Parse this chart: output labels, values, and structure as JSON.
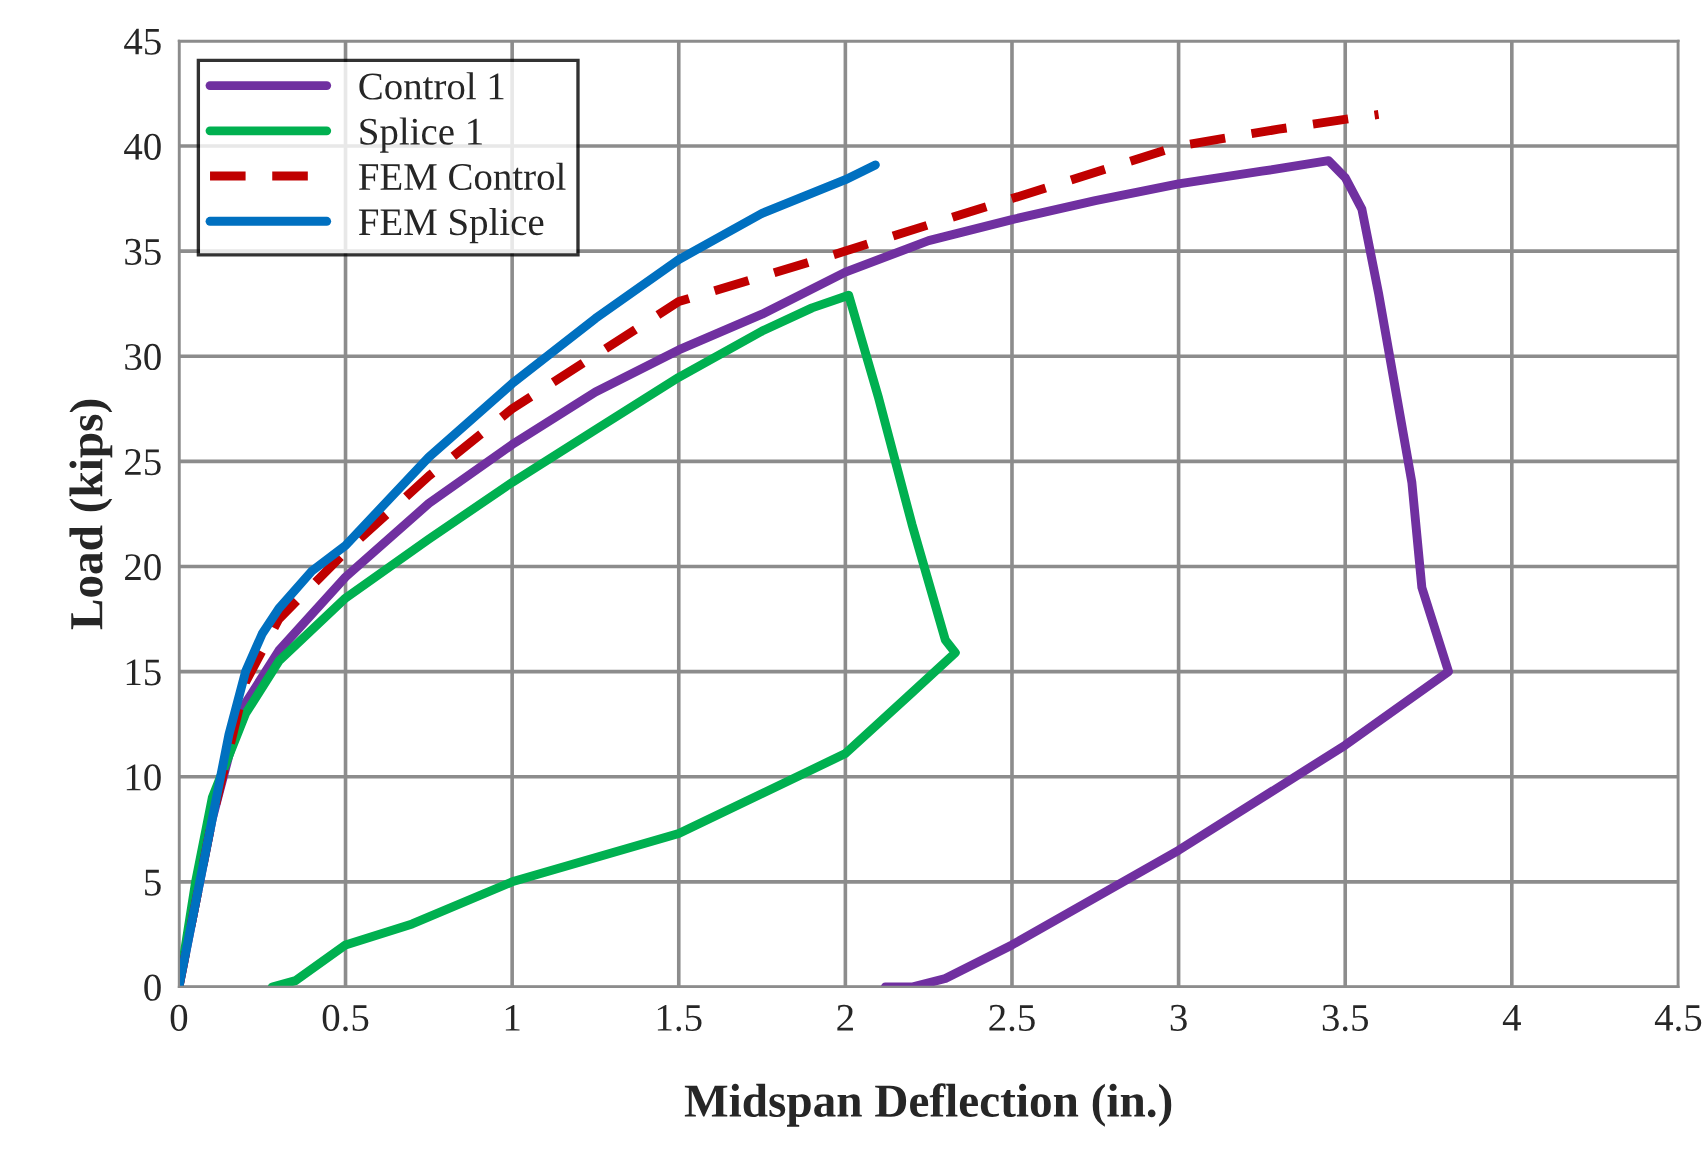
{
  "chart_data": {
    "type": "line",
    "xlabel": "Midspan Deflection (in.)",
    "ylabel": "Load (kips)",
    "xlim": [
      0,
      4.5
    ],
    "xticks": [
      0,
      0.5,
      1,
      1.5,
      2,
      2.5,
      3,
      3.5,
      4,
      4.5
    ],
    "ylim": [
      0,
      45
    ],
    "yticks": [
      0,
      5,
      10,
      15,
      20,
      25,
      30,
      35,
      40,
      45
    ],
    "grid": true,
    "legend": "top left",
    "series": [
      {
        "name": "Control 1",
        "color": "#7030a0",
        "line_style": "solid",
        "x": [
          0,
          0.05,
          0.1,
          0.15,
          0.2,
          0.3,
          0.5,
          0.75,
          1,
          1.25,
          1.5,
          1.75,
          2,
          2.25,
          2.5,
          2.75,
          3,
          3.25,
          3.45,
          3.5,
          3.55,
          3.6,
          3.7,
          3.73,
          3.81,
          3.5,
          3,
          2.5,
          2.3,
          2.2,
          2.12
        ],
        "values": [
          0,
          4,
          8,
          11,
          13.5,
          16,
          19.5,
          23,
          25.8,
          28.3,
          30.3,
          32,
          34,
          35.5,
          36.5,
          37.4,
          38.2,
          38.8,
          39.3,
          38.5,
          37,
          33,
          24,
          19,
          15,
          11.5,
          6.5,
          2,
          0.4,
          0,
          0
        ]
      },
      {
        "name": "Splice 1",
        "color": "#00b050",
        "line_style": "solid",
        "x": [
          0,
          0.05,
          0.1,
          0.2,
          0.3,
          0.5,
          0.75,
          1,
          1.25,
          1.5,
          1.75,
          1.9,
          2.01,
          2.1,
          2.2,
          2.3,
          2.33,
          2.2,
          2,
          1.5,
          1,
          0.7,
          0.5,
          0.35,
          0.28
        ],
        "values": [
          0,
          5,
          9,
          13,
          15.5,
          18.5,
          21.3,
          24,
          26.5,
          29,
          31.2,
          32.3,
          32.9,
          28,
          22,
          16.5,
          15.9,
          14,
          11.1,
          7.3,
          5,
          3,
          2,
          0.3,
          0
        ]
      },
      {
        "name": "FEM Control",
        "color": "#c00000",
        "line_style": "dashed",
        "x": [
          0,
          0.1,
          0.2,
          0.3,
          0.5,
          0.75,
          1,
          1.5,
          2,
          2.5,
          3,
          3.3,
          3.6
        ],
        "values": [
          0,
          8,
          14.5,
          17.5,
          20.7,
          24.3,
          27.5,
          32.6,
          35,
          37.5,
          40,
          40.8,
          41.5
        ]
      },
      {
        "name": "FEM Splice",
        "color": "#0070c0",
        "line_style": "solid",
        "x": [
          0,
          0.05,
          0.1,
          0.15,
          0.2,
          0.25,
          0.3,
          0.4,
          0.5,
          0.75,
          1,
          1.25,
          1.5,
          1.75,
          2,
          2.09
        ],
        "values": [
          0,
          4,
          8,
          12,
          15,
          16.8,
          18,
          19.8,
          21,
          25.2,
          28.7,
          31.8,
          34.6,
          36.8,
          38.4,
          39.1
        ]
      }
    ]
  }
}
